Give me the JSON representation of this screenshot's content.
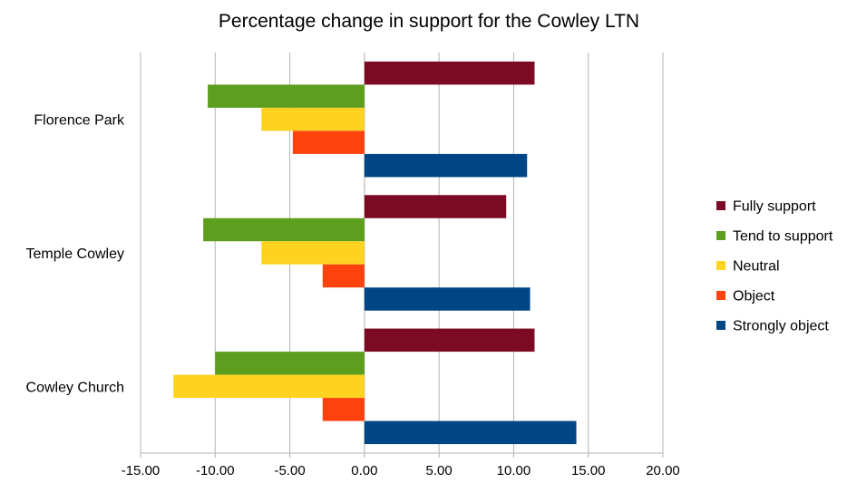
{
  "chart_data": {
    "type": "bar",
    "orientation": "horizontal",
    "title": "Percentage change in support for the Cowley LTN",
    "xlabel": "",
    "ylabel": "",
    "xlim": [
      -15,
      20
    ],
    "x_ticks": [
      -15,
      -10,
      -5,
      0,
      5,
      10,
      15,
      20
    ],
    "x_tick_labels": [
      "-15.00",
      "-10.00",
      "-5.00",
      "0.00",
      "5.00",
      "10.00",
      "15.00",
      "20.00"
    ],
    "grid": true,
    "legend_position": "right",
    "categories": [
      "Florence Park",
      "Temple Cowley",
      "Cowley Church"
    ],
    "series": [
      {
        "name": "Fully support",
        "color": "#7b0a22",
        "values": [
          11.4,
          9.5,
          11.4
        ]
      },
      {
        "name": "Tend to support",
        "color": "#5d9e1f",
        "values": [
          -10.5,
          -10.8,
          -10.0
        ]
      },
      {
        "name": "Neutral",
        "color": "#ffd320",
        "values": [
          -6.9,
          -6.9,
          -12.8
        ]
      },
      {
        "name": "Object",
        "color": "#ff420e",
        "values": [
          -4.8,
          -2.8,
          -2.8
        ]
      },
      {
        "name": "Strongly object",
        "color": "#004586",
        "values": [
          10.9,
          11.1,
          14.2
        ]
      }
    ]
  }
}
